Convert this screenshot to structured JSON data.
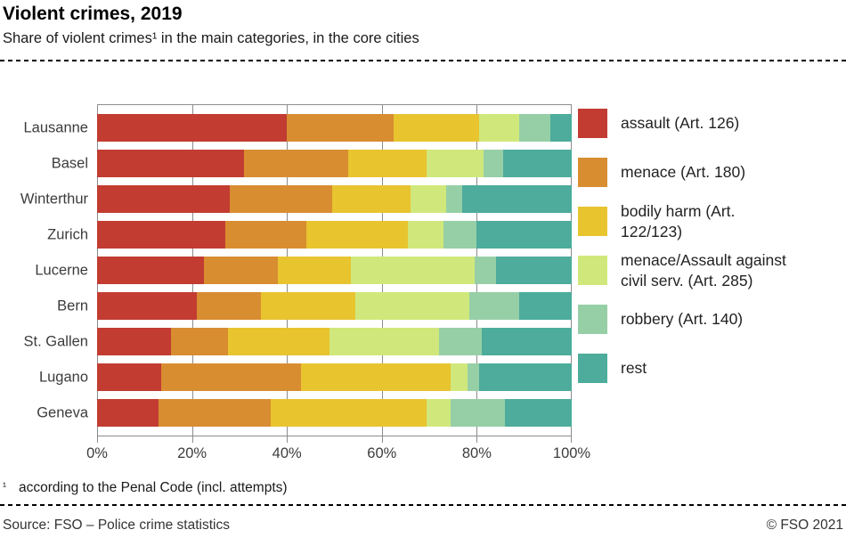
{
  "header": {
    "title": "Violent crimes, 2019",
    "subtitle": "Share of violent crimes¹ in the main categories, in the core cities"
  },
  "chart_data": {
    "type": "bar",
    "variant": "horizontal-stacked",
    "unit": "%",
    "x_range": [
      0,
      100
    ],
    "x_ticks": [
      "0%",
      "20%",
      "40%",
      "60%",
      "80%",
      "100%"
    ],
    "grid": true,
    "legend_position": "right",
    "categories": [
      "Lausanne",
      "Basel",
      "Winterthur",
      "Zurich",
      "Lucerne",
      "Bern",
      "St. Gallen",
      "Lugano",
      "Geneva"
    ],
    "series": [
      {
        "name": "assault (Art. 126)",
        "legend_lines": [
          "assault (Art. 126)"
        ],
        "color": "#c23c32",
        "values": [
          40,
          31,
          28,
          27,
          22.5,
          21,
          15.5,
          13.5,
          13
        ]
      },
      {
        "name": "menace (Art. 180)",
        "legend_lines": [
          "menace (Art. 180)"
        ],
        "color": "#d88d31",
        "values": [
          22.5,
          22,
          21.5,
          17,
          15.5,
          13.5,
          12,
          29.5,
          23.5
        ]
      },
      {
        "name": "bodily harm (Art. 122/123)",
        "legend_lines": [
          "bodily harm (Art.",
          "122/123)"
        ],
        "color": "#e8c42f",
        "values": [
          18,
          16.5,
          16.5,
          21.5,
          15.5,
          20,
          21.5,
          31.5,
          33
        ]
      },
      {
        "name": "menace/Assault against civil serv. (Art. 285)",
        "legend_lines": [
          "menace/Assault against",
          "civil serv. (Art. 285)"
        ],
        "color": "#d0e87b",
        "values": [
          8.5,
          12,
          7.5,
          7.5,
          26,
          24,
          23,
          3.5,
          5
        ]
      },
      {
        "name": "robbery (Art. 140)",
        "legend_lines": [
          "robbery (Art. 140)"
        ],
        "color": "#96cfa6",
        "values": [
          6.5,
          4,
          3.5,
          7,
          4.5,
          10.5,
          9,
          2.5,
          11.5
        ]
      },
      {
        "name": "rest",
        "legend_lines": [
          "rest"
        ],
        "color": "#4dac9c",
        "values": [
          4.5,
          14.5,
          23,
          20,
          16,
          11,
          19,
          19.5,
          14
        ]
      }
    ]
  },
  "footnote": {
    "marker": "¹",
    "text": "according to the Penal Code (incl. attempts)"
  },
  "footer": {
    "source": "Source: FSO – Police crime statistics",
    "copyright": "© FSO 2021"
  }
}
